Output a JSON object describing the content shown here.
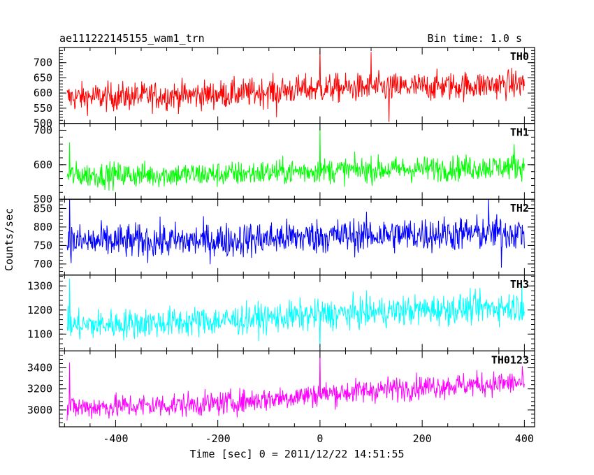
{
  "header": {
    "left_title": "ae111222145155_wam1_trn",
    "right_title": "Bin time: 1.0 s"
  },
  "chart_data": {
    "type": "line",
    "xlabel": "Time [sec] 0 = 2011/12/22 14:51:55",
    "ylabel": "Counts/sec",
    "xlim": [
      -510,
      420
    ],
    "x_ticks": [
      -400,
      -200,
      0,
      200,
      400
    ],
    "x_range_data": [
      -495,
      400
    ],
    "bin_time_s": 1.0,
    "panels": [
      {
        "name": "TH0",
        "color": "#ff0000",
        "ylim": [
          500,
          750
        ],
        "y_ticks": [
          500,
          550,
          600,
          650,
          700
        ],
        "trend": [
          [
            -495,
            585
          ],
          [
            -200,
            595
          ],
          [
            0,
            615
          ],
          [
            200,
            620
          ],
          [
            400,
            630
          ]
        ],
        "noise_amp": 45,
        "spikes": [
          [
            0,
            745
          ],
          [
            -85,
            520
          ],
          [
            135,
            505
          ],
          [
            100,
            735
          ]
        ]
      },
      {
        "name": "TH1",
        "color": "#00ff00",
        "ylim": [
          500,
          720
        ],
        "y_ticks": [
          500,
          600,
          700
        ],
        "trend": [
          [
            -495,
            570
          ],
          [
            -200,
            572
          ],
          [
            0,
            583
          ],
          [
            200,
            588
          ],
          [
            400,
            595
          ]
        ],
        "noise_amp": 35,
        "spikes": [
          [
            0,
            715
          ],
          [
            -490,
            665
          ],
          [
            380,
            660
          ]
        ]
      },
      {
        "name": "TH2",
        "color": "#0000ff",
        "ylim": [
          670,
          875
        ],
        "y_ticks": [
          700,
          750,
          800,
          850
        ],
        "trend": [
          [
            -495,
            760
          ],
          [
            -200,
            763
          ],
          [
            0,
            775
          ],
          [
            200,
            780
          ],
          [
            400,
            785
          ]
        ],
        "noise_amp": 45,
        "spikes": [
          [
            -490,
            880
          ],
          [
            355,
            690
          ],
          [
            330,
            880
          ]
        ]
      },
      {
        "name": "TH3",
        "color": "#00ffff",
        "ylim": [
          1030,
          1345
        ],
        "y_ticks": [
          1100,
          1200,
          1300
        ],
        "trend": [
          [
            -495,
            1135
          ],
          [
            -200,
            1155
          ],
          [
            0,
            1180
          ],
          [
            200,
            1200
          ],
          [
            400,
            1215
          ]
        ],
        "noise_amp": 60,
        "spikes": [
          [
            -490,
            1330
          ],
          [
            0,
            1040
          ],
          [
            395,
            1310
          ]
        ]
      },
      {
        "name": "TH0123",
        "color": "#ff00ff",
        "ylim": [
          2840,
          3560
        ],
        "y_ticks": [
          3000,
          3200,
          3400
        ],
        "trend": [
          [
            -495,
            3020
          ],
          [
            -200,
            3060
          ],
          [
            0,
            3150
          ],
          [
            200,
            3220
          ],
          [
            400,
            3260
          ]
        ],
        "noise_amp": 110,
        "spikes": [
          [
            0,
            3550
          ],
          [
            -490,
            3450
          ],
          [
            -495,
            2900
          ]
        ]
      }
    ]
  }
}
